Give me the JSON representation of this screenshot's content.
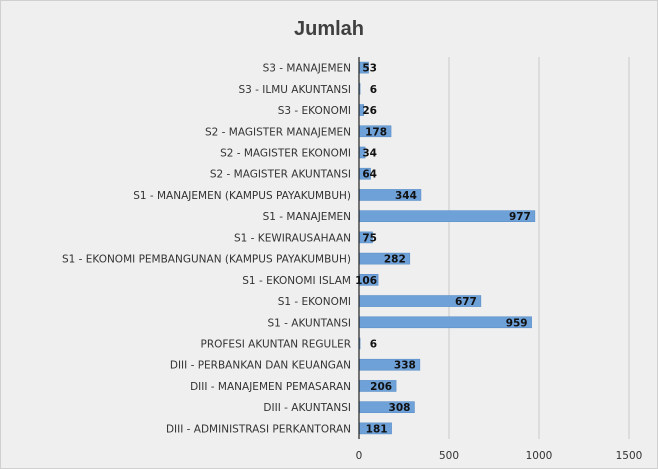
{
  "chart_data": {
    "type": "bar",
    "orientation": "horizontal",
    "title": "Jumlah",
    "categories": [
      "DIII - ADMINISTRASI PERKANTORAN",
      "DIII - AKUNTANSI",
      "DIII - MANAJEMEN PEMASARAN",
      "DIII - PERBANKAN DAN KEUANGAN",
      "PROFESI AKUNTAN REGULER",
      "S1 - AKUNTANSI",
      "S1 - EKONOMI",
      "S1 - EKONOMI ISLAM",
      "S1 - EKONOMI PEMBANGUNAN (KAMPUS PAYAKUMBUH)",
      "S1 - KEWIRAUSAHAAN",
      "S1 - MANAJEMEN",
      "S1 - MANAJEMEN (KAMPUS PAYAKUMBUH)",
      "S2 - MAGISTER AKUNTANSI",
      "S2 - MAGISTER EKONOMI",
      "S2 - MAGISTER MANAJEMEN",
      "S3 - EKONOMI",
      "S3 - ILMU AKUNTANSI",
      "S3 - MANAJEMEN"
    ],
    "values": [
      181,
      308,
      206,
      338,
      6,
      959,
      677,
      106,
      282,
      75,
      977,
      344,
      64,
      34,
      178,
      26,
      6,
      53
    ],
    "xlim": [
      0,
      1500
    ],
    "xticks": [
      0,
      500,
      1000,
      1500
    ],
    "grid": true,
    "legend": "none",
    "bar_color": "#6fa1d9",
    "bar_edge_color": "#5b8fc9",
    "gridline_color": "#c8c8c8",
    "background_color": "#efefef"
  }
}
